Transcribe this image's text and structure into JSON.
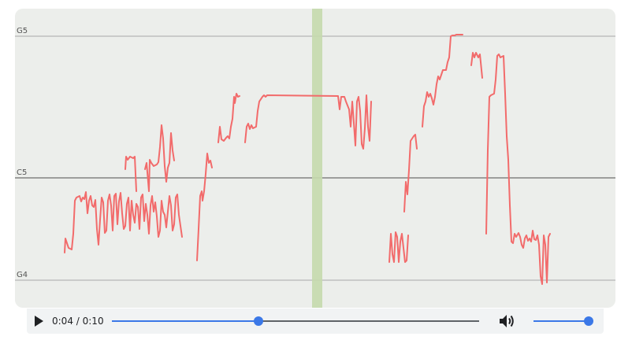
{
  "pitch_graph": {
    "note_labels": {
      "g5": "G5",
      "c5": "C5",
      "g4": "G4"
    },
    "colors": {
      "pitch_line": "#f26b6b",
      "playhead": "#c5d9ad",
      "grid": "#9a9a9a",
      "c5_line": "#6e6e6e"
    },
    "playhead_position": 0.4
  },
  "player": {
    "current_time": "0:04",
    "separator": " / ",
    "duration": "0:10",
    "progress": 0.4,
    "volume": 1.0,
    "play_icon": "play-icon",
    "volume_icon": "volume-icon",
    "accent": "#3b78e7"
  }
}
